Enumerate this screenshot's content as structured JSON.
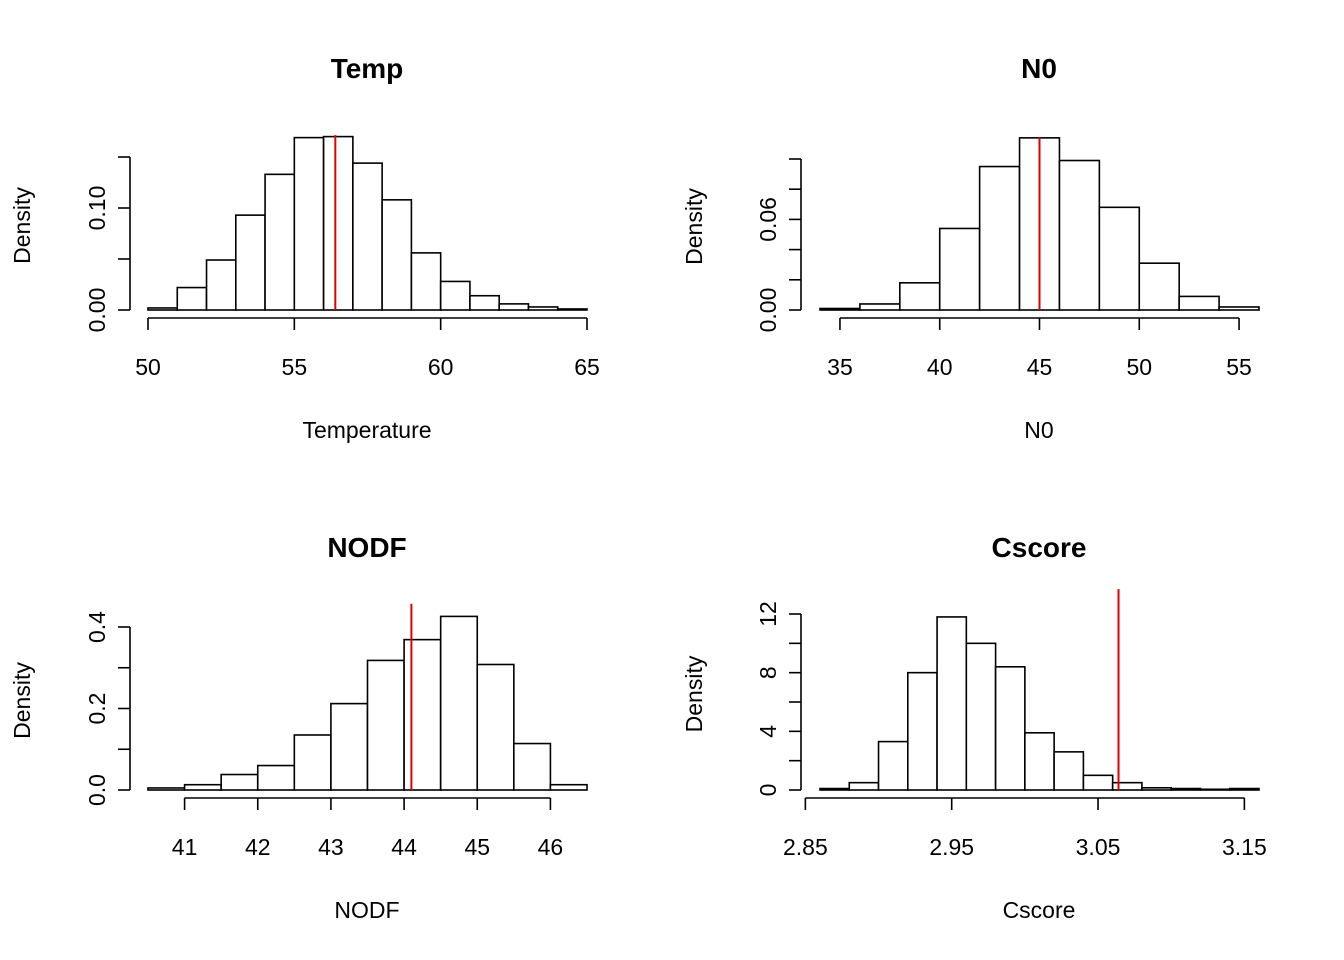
{
  "chart_data": [
    {
      "type": "bar",
      "title": "Temp",
      "xlabel": "Temperature",
      "ylabel": "Density",
      "xlim": [
        50,
        65
      ],
      "ylim": [
        0,
        0.15
      ],
      "bin_edges": [
        50,
        51,
        52,
        53,
        54,
        55,
        56,
        57,
        58,
        59,
        60,
        61,
        62,
        63,
        64,
        65
      ],
      "values": [
        0.002,
        0.022,
        0.049,
        0.093,
        0.133,
        0.169,
        0.17,
        0.144,
        0.108,
        0.056,
        0.028,
        0.014,
        0.006,
        0.003,
        0.001
      ],
      "x_ticks": [
        50,
        55,
        60,
        65
      ],
      "x_tick_labels": [
        "50",
        "55",
        "60",
        "65"
      ],
      "y_ticks": [
        0,
        0.05,
        0.1,
        0.15
      ],
      "y_tick_labels": [
        "0.00",
        "",
        "0.10",
        ""
      ],
      "observed_value": 56.4,
      "observed_color": "#e00000"
    },
    {
      "type": "bar",
      "title": "N0",
      "xlabel": "N0",
      "ylabel": "Density",
      "xlim": [
        34,
        56
      ],
      "ylim": [
        0,
        0.1
      ],
      "bin_edges": [
        34,
        36,
        38,
        40,
        42,
        44,
        46,
        48,
        50,
        52,
        54,
        56
      ],
      "values": [
        0.001,
        0.004,
        0.018,
        0.054,
        0.095,
        0.114,
        0.099,
        0.068,
        0.031,
        0.009,
        0.002
      ],
      "x_ticks": [
        35,
        40,
        45,
        50,
        55
      ],
      "x_tick_labels": [
        "35",
        "40",
        "45",
        "50",
        "55"
      ],
      "y_ticks": [
        0,
        0.02,
        0.04,
        0.06,
        0.08,
        0.1
      ],
      "y_tick_labels": [
        "0.00",
        "",
        "",
        "0.06",
        "",
        ""
      ],
      "observed_value": 45.0,
      "observed_color": "#e00000"
    },
    {
      "type": "bar",
      "title": "NODF",
      "xlabel": "NODF",
      "ylabel": "Density",
      "xlim": [
        40.5,
        46.5
      ],
      "ylim": [
        0,
        0.4
      ],
      "bin_edges": [
        40.5,
        41,
        41.5,
        42,
        42.5,
        43,
        43.5,
        44,
        44.5,
        45,
        45.5,
        46,
        46.5
      ],
      "values": [
        0.005,
        0.013,
        0.038,
        0.06,
        0.135,
        0.212,
        0.318,
        0.369,
        0.426,
        0.308,
        0.114,
        0.013
      ],
      "x_ticks": [
        41,
        42,
        43,
        44,
        45,
        46
      ],
      "x_tick_labels": [
        "41",
        "42",
        "43",
        "44",
        "45",
        "46"
      ],
      "y_ticks": [
        0,
        0.1,
        0.2,
        0.3,
        0.4
      ],
      "y_tick_labels": [
        "0.0",
        "",
        "0.2",
        "",
        "0.4"
      ],
      "observed_value": 44.1,
      "observed_color": "#e00000"
    },
    {
      "type": "bar",
      "title": "Cscore",
      "xlabel": "Cscore",
      "ylabel": "Density",
      "xlim": [
        2.86,
        3.16
      ],
      "ylim": [
        0,
        12
      ],
      "bin_edges": [
        2.86,
        2.88,
        2.9,
        2.92,
        2.94,
        2.96,
        2.98,
        3.0,
        3.02,
        3.04,
        3.06,
        3.08,
        3.1,
        3.12,
        3.14,
        3.16
      ],
      "values": [
        0.1,
        0.5,
        3.3,
        8.0,
        11.8,
        10.0,
        8.4,
        3.9,
        2.6,
        1.0,
        0.5,
        0.15,
        0.1,
        0.05,
        0.1
      ],
      "x_ticks": [
        2.85,
        2.95,
        3.05,
        3.15
      ],
      "x_tick_labels": [
        "2.85",
        "2.95",
        "3.05",
        "3.15"
      ],
      "y_ticks": [
        0,
        2,
        4,
        6,
        8,
        10,
        12
      ],
      "y_tick_labels": [
        "0",
        "",
        "4",
        "",
        "8",
        "",
        "12"
      ],
      "observed_value": 3.064,
      "observed_color": "#e00000"
    }
  ]
}
